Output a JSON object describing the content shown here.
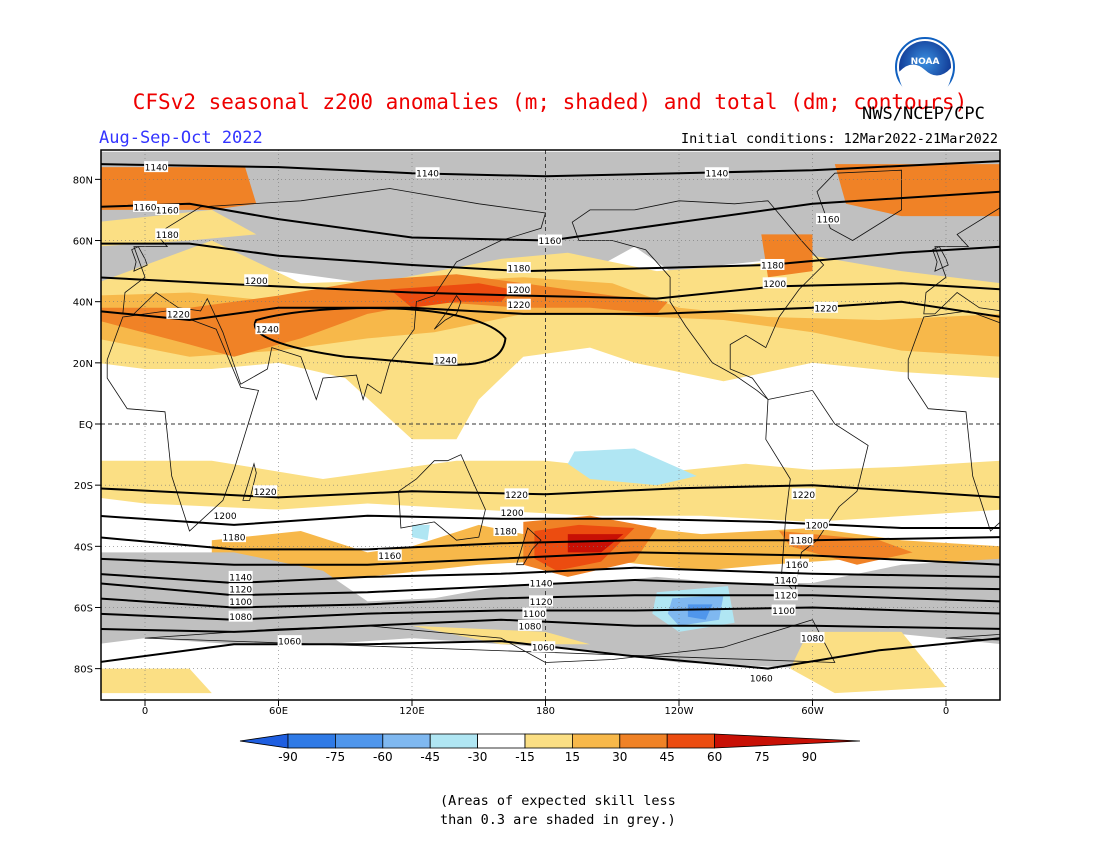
{
  "title": "CFSv2 seasonal z200 anomalies (m; shaded) and total (dm; contours)",
  "agency": "NWS/NCEP/CPC",
  "season": "Aug-Sep-Oct 2022",
  "initial_conditions": "Initial conditions: 12Mar2022-21Mar2022",
  "note_line1": "(Areas of expected skill less",
  "note_line2": "than 0.3 are shaded in grey.)",
  "logo_text": "NOAA",
  "lat_labels": [
    "80N",
    "60N",
    "40N",
    "20N",
    "EQ",
    "20S",
    "40S",
    "60S",
    "80S"
  ],
  "lon_labels": [
    "0",
    "60E",
    "120E",
    "180",
    "120W",
    "60W",
    "0"
  ],
  "colorbar": {
    "labels": [
      "-90",
      "-75",
      "-60",
      "-45",
      "-30",
      "-15",
      "15",
      "30",
      "45",
      "60",
      "75",
      "90"
    ],
    "colors": [
      "#1e5ee0",
      "#2f7ae6",
      "#4f96ec",
      "#7fb8f0",
      "#b0e6f3",
      "#ffffff",
      "#fbdf84",
      "#f7b84a",
      "#f08226",
      "#ec4c10",
      "#c81005"
    ]
  },
  "colors": {
    "grey": "#c0c0c0",
    "yellow": "#fbdf84",
    "lorange": "#f7b84a",
    "orange": "#f08226",
    "redor": "#ec4c10",
    "red": "#c81005",
    "cyan": "#b0e6f3",
    "lblue": "#7fb8f0",
    "blue": "#4f96ec"
  },
  "contour_labels": [
    {
      "t": "1140",
      "lon": 5
    },
    {
      "t": "1160",
      "lon": 10
    },
    {
      "t": "1180",
      "lon": 10
    },
    {
      "t": "1200",
      "lon": 50
    },
    {
      "t": "1220",
      "lon": 15
    },
    {
      "t": "1240",
      "lon": 55
    },
    {
      "t": "1140",
      "lon": 127
    },
    {
      "t": "1160",
      "lon": 182
    },
    {
      "t": "1180",
      "lon": 168
    },
    {
      "t": "1200",
      "lon": 168
    },
    {
      "t": "1220",
      "lon": 168
    },
    {
      "t": "1240",
      "lon": 135
    },
    {
      "t": "1140",
      "lon": 257
    },
    {
      "t": "1180",
      "lon": 282
    },
    {
      "t": "1200",
      "lon": 283
    },
    {
      "t": "1160",
      "lon": 307
    },
    {
      "t": "1220",
      "lon": 306
    },
    {
      "t": "1220",
      "lon": 54
    },
    {
      "t": "1200",
      "lon": 36
    },
    {
      "t": "1180",
      "lon": 40
    },
    {
      "t": "1160",
      "lon": 0
    },
    {
      "t": "1160",
      "lon": 110
    },
    {
      "t": "1220",
      "lon": 167
    },
    {
      "t": "1200",
      "lon": 165
    },
    {
      "t": "1180",
      "lon": 162
    },
    {
      "t": "1220",
      "lon": 296
    },
    {
      "t": "1200",
      "lon": 302
    },
    {
      "t": "1180",
      "lon": 295
    },
    {
      "t": "1160",
      "lon": 293
    },
    {
      "t": "1140",
      "lon": 43
    },
    {
      "t": "1120",
      "lon": 43
    },
    {
      "t": "1100",
      "lon": 43
    },
    {
      "t": "1080",
      "lon": 43
    },
    {
      "t": "1060",
      "lon": 65
    },
    {
      "t": "1140",
      "lon": 178
    },
    {
      "t": "1120",
      "lon": 178
    },
    {
      "t": "1100",
      "lon": 175
    },
    {
      "t": "1080",
      "lon": 173
    },
    {
      "t": "1060",
      "lon": 179
    },
    {
      "t": "1140",
      "lon": 288
    },
    {
      "t": "1120",
      "lon": 288
    },
    {
      "t": "1100",
      "lon": 287
    },
    {
      "t": "1080",
      "lon": 300
    },
    {
      "t": "1060",
      "lon": 277
    }
  ]
}
